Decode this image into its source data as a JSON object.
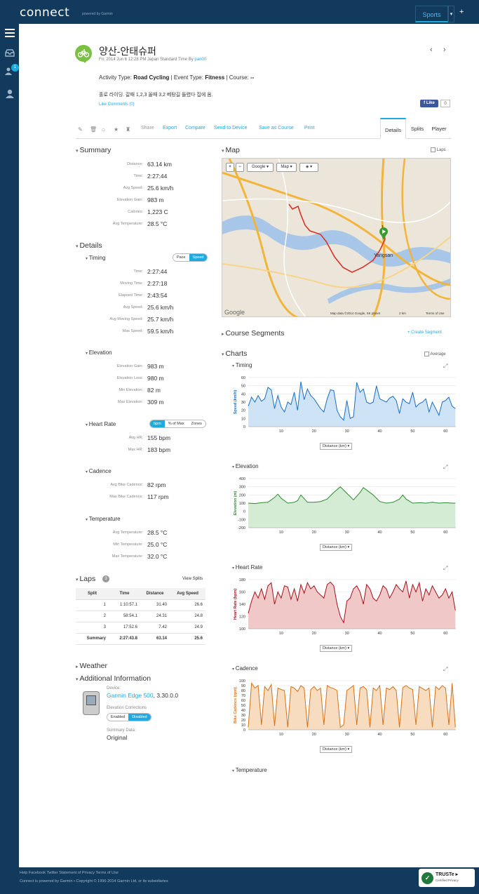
{
  "app": {
    "logo": "connect",
    "logo_sub": "powered by Garmin",
    "sports_tab": "Sports",
    "plus": "+",
    "notif_count": "1"
  },
  "activity": {
    "title": "양산-안태슈퍼",
    "date": "Fri, 2014 Jun 6 12:28 PM Japan Standard Time By",
    "user": "pan00",
    "activity_type_label": "Activity Type:",
    "activity_type": "Road Cycling",
    "event_type_label": "| Event Type:",
    "event_type": "Fitness",
    "course_label": "| Course:",
    "course": "--",
    "description": "홀로 라이딩. 갈때 1,2,3 올때 3,2 베탕길 들렸다 집에 옴.",
    "likes": "Like Comments (0)",
    "fb_like": "Like",
    "fb_count": "0"
  },
  "toolbar": {
    "share": "Share",
    "export": "Export",
    "compare": "Compare",
    "send": "Send to Device",
    "save_course": "Save as Course",
    "print": "Print",
    "tabs": [
      "Details",
      "Splits",
      "Player"
    ]
  },
  "summary": {
    "title": "Summary",
    "rows": [
      {
        "label": "Distance:",
        "value": "63.14 km"
      },
      {
        "label": "Time:",
        "value": "2:27:44"
      },
      {
        "label": "Avg Speed:",
        "value": "25.6 km/h"
      },
      {
        "label": "Elevation Gain:",
        "value": "983 m"
      },
      {
        "label": "Calories:",
        "value": "1,223 C"
      },
      {
        "label": "Avg Temperature:",
        "value": "28.5 °C"
      }
    ]
  },
  "details": {
    "title": "Details",
    "timing": {
      "title": "Timing",
      "toggle": [
        "Pace",
        "Speed"
      ],
      "rows": [
        {
          "label": "Time:",
          "value": "2:27:44"
        },
        {
          "label": "Moving Time:",
          "value": "2:27:18"
        },
        {
          "label": "Elapsed Time:",
          "value": "2:43:54"
        },
        {
          "label": "Avg Speed:",
          "value": "25.6 km/h"
        },
        {
          "label": "Avg Moving Speed:",
          "value": "25.7 km/h"
        },
        {
          "label": "Max Speed:",
          "value": "59.5 km/h"
        }
      ]
    },
    "elevation": {
      "title": "Elevation",
      "rows": [
        {
          "label": "Elevation Gain:",
          "value": "983 m"
        },
        {
          "label": "Elevation Loss:",
          "value": "980 m"
        },
        {
          "label": "Min Elevation:",
          "value": "82 m"
        },
        {
          "label": "Max Elevation:",
          "value": "309 m"
        }
      ]
    },
    "heart_rate": {
      "title": "Heart Rate",
      "toggle": [
        "bpm",
        "% of Max",
        "Zones"
      ],
      "rows": [
        {
          "label": "Avg HR:",
          "value": "155 bpm"
        },
        {
          "label": "Max HR:",
          "value": "183 bpm"
        }
      ]
    },
    "cadence": {
      "title": "Cadence",
      "rows": [
        {
          "label": "Avg Bike Cadence:",
          "value": "82 rpm"
        },
        {
          "label": "Max Bike Cadence:",
          "value": "117 rpm"
        }
      ]
    },
    "temperature": {
      "title": "Temperature",
      "rows": [
        {
          "label": "Avg Temperature:",
          "value": "28.5 °C"
        },
        {
          "label": "Min Temperature:",
          "value": "25.0 °C"
        },
        {
          "label": "Max Temperature:",
          "value": "32.0 °C"
        }
      ]
    }
  },
  "laps": {
    "title": "Laps",
    "count": "3",
    "view_splits": "View Splits",
    "headers": [
      "Split",
      "Time",
      "Distance",
      "Avg Speed"
    ],
    "rows": [
      [
        "1",
        "1:10:57.1",
        "31.40",
        "26.6"
      ],
      [
        "2",
        "58:54.1",
        "24.31",
        "24.8"
      ],
      [
        "3",
        "17:52.6",
        "7.42",
        "24.9"
      ],
      [
        "Summary",
        "2:27:43.8",
        "63.14",
        "25.6"
      ]
    ]
  },
  "weather": {
    "title": "Weather"
  },
  "additional": {
    "title": "Additional Information",
    "device_label": "Device:",
    "device": "Garmin Edge 500",
    "device_ver": ", 3.30.0.0",
    "elev_corr_label": "Elevation Corrections",
    "elev_toggle": [
      "Enabled",
      "Disabled"
    ],
    "summary_data_label": "Summary Data:",
    "summary_data": "Original"
  },
  "map": {
    "title": "Map",
    "laps_label": "Laps",
    "zoom_in": "+",
    "zoom_out": "−",
    "provider": "Google ▾",
    "type": "Map ▾",
    "layers": "▾",
    "town": "Yangsan",
    "attribution": "Map data ©2014 Google, SK planet",
    "scale": "2 km",
    "terms": "Terms of Use",
    "google": "Google"
  },
  "course_segments": {
    "title": "Course Segments",
    "create": "+ Create Segment"
  },
  "charts": {
    "title": "Charts",
    "average_label": "Average",
    "temperature_title": "Temperature",
    "axis_select": "Distance (km) ▾"
  },
  "chart_data": [
    {
      "type": "area",
      "title": "Timing",
      "ylabel": "Speed (km/h)",
      "xlabel": "Distance (km)",
      "color": "#1a6fc4",
      "fill": "#cfe3f7",
      "ylim": [
        0,
        60
      ],
      "yticks": [
        0,
        10,
        20,
        30,
        40,
        50,
        60
      ],
      "xlim": [
        0,
        63.14
      ],
      "xticks": [
        10,
        20,
        30,
        40,
        50,
        60
      ],
      "x": [
        0,
        1,
        2,
        3,
        4,
        5,
        6,
        7,
        8,
        9,
        10,
        11,
        12,
        13,
        14,
        15,
        16,
        17,
        18,
        19,
        20,
        21,
        22,
        23,
        24,
        25,
        26,
        27,
        28,
        29,
        30,
        31,
        32,
        33,
        34,
        35,
        36,
        37,
        38,
        39,
        40,
        41,
        42,
        43,
        44,
        45,
        46,
        47,
        48,
        49,
        50,
        51,
        52,
        53,
        54,
        55,
        56,
        57,
        58,
        59,
        60,
        61,
        62,
        63
      ],
      "y": [
        25,
        36,
        30,
        38,
        31,
        34,
        48,
        45,
        22,
        38,
        24,
        18,
        30,
        27,
        42,
        20,
        55,
        33,
        46,
        38,
        34,
        28,
        22,
        18,
        34,
        45,
        44,
        20,
        12,
        8,
        32,
        10,
        12,
        54,
        42,
        46,
        30,
        28,
        30,
        50,
        34,
        32,
        30,
        35,
        37,
        32,
        16,
        34,
        30,
        28,
        42,
        24,
        28,
        30,
        34,
        18,
        30,
        22,
        14,
        30,
        32,
        36,
        25,
        22
      ]
    },
    {
      "type": "area",
      "title": "Elevation",
      "ylabel": "Elevation (m)",
      "xlabel": "Distance (km)",
      "color": "#2e8b2e",
      "fill": "#d3ecd3",
      "ylim": [
        -200,
        400
      ],
      "yticks": [
        -200,
        -100,
        0,
        100,
        200,
        300,
        400
      ],
      "xlim": [
        0,
        63.14
      ],
      "xticks": [
        10,
        20,
        30,
        40,
        50,
        60
      ],
      "x": [
        0,
        2,
        4,
        6,
        8,
        9,
        10,
        12,
        14,
        15,
        16,
        18,
        20,
        22,
        24,
        26,
        28,
        30,
        32,
        34,
        35,
        36,
        38,
        40,
        42,
        44,
        46,
        47,
        48,
        50,
        52,
        54,
        56,
        58,
        60,
        62,
        63
      ],
      "y": [
        100,
        95,
        105,
        110,
        170,
        210,
        160,
        100,
        110,
        130,
        200,
        110,
        110,
        120,
        150,
        230,
        300,
        220,
        140,
        230,
        290,
        260,
        200,
        120,
        100,
        110,
        150,
        200,
        150,
        100,
        105,
        100,
        110,
        100,
        105,
        100,
        100
      ]
    },
    {
      "type": "area",
      "title": "Heart Rate",
      "ylabel": "Heart Rate (bpm)",
      "xlabel": "Distance (km)",
      "color": "#a3121b",
      "fill": "#f0c8c8",
      "ylim": [
        100,
        180
      ],
      "yticks": [
        100,
        120,
        140,
        160,
        180
      ],
      "xlim": [
        0,
        63.14
      ],
      "xticks": [
        10,
        20,
        30,
        40,
        50,
        60
      ],
      "x": [
        0,
        1,
        2,
        3,
        4,
        5,
        6,
        7,
        8,
        9,
        10,
        11,
        12,
        13,
        14,
        15,
        16,
        17,
        18,
        19,
        20,
        21,
        22,
        23,
        24,
        25,
        26,
        27,
        28,
        29,
        30,
        31,
        32,
        33,
        34,
        35,
        36,
        37,
        38,
        39,
        40,
        41,
        42,
        43,
        44,
        45,
        46,
        47,
        48,
        49,
        50,
        51,
        52,
        53,
        54,
        55,
        56,
        57,
        58,
        59,
        60,
        61,
        62,
        63
      ],
      "y": [
        125,
        145,
        160,
        150,
        165,
        148,
        170,
        175,
        140,
        160,
        150,
        170,
        168,
        148,
        165,
        145,
        172,
        158,
        175,
        165,
        170,
        160,
        155,
        150,
        172,
        176,
        170,
        140,
        120,
        110,
        145,
        150,
        165,
        170,
        160,
        140,
        172,
        165,
        150,
        145,
        155,
        170,
        165,
        150,
        160,
        172,
        165,
        160,
        178,
        150,
        172,
        160,
        175,
        145,
        165,
        155,
        170,
        160,
        150,
        155,
        165,
        150,
        160,
        130
      ]
    },
    {
      "type": "area",
      "title": "Cadence",
      "ylabel": "Bike Cadence (rpm)",
      "xlabel": "Distance (km)",
      "color": "#d2731c",
      "fill": "#f8dcc0",
      "ylim": [
        0,
        100
      ],
      "yticks": [
        0,
        10,
        20,
        30,
        40,
        50,
        60,
        70,
        80,
        90,
        100
      ],
      "xlim": [
        0,
        63.14
      ],
      "xticks": [
        10,
        20,
        30,
        40,
        50,
        60
      ],
      "x": [
        0,
        1,
        2,
        3,
        4,
        5,
        6,
        7,
        8,
        9,
        10,
        11,
        12,
        13,
        14,
        15,
        16,
        17,
        18,
        19,
        20,
        21,
        22,
        23,
        24,
        25,
        26,
        27,
        28,
        29,
        30,
        31,
        32,
        33,
        34,
        35,
        36,
        37,
        38,
        39,
        40,
        41,
        42,
        43,
        44,
        45,
        46,
        47,
        48,
        49,
        50,
        51,
        52,
        53,
        54,
        55,
        56,
        57,
        58,
        59,
        60,
        61,
        62,
        63
      ],
      "y": [
        5,
        95,
        85,
        90,
        10,
        88,
        80,
        92,
        8,
        85,
        82,
        80,
        5,
        88,
        85,
        78,
        90,
        85,
        5,
        82,
        88,
        80,
        85,
        10,
        90,
        86,
        84,
        80,
        5,
        10,
        80,
        85,
        90,
        10,
        85,
        88,
        82,
        5,
        85,
        80,
        90,
        10,
        85,
        82,
        88,
        80,
        5,
        86,
        90,
        85,
        82,
        10,
        88,
        84,
        80,
        85,
        5,
        88,
        82,
        90,
        85,
        10,
        95,
        5
      ]
    }
  ]
}
